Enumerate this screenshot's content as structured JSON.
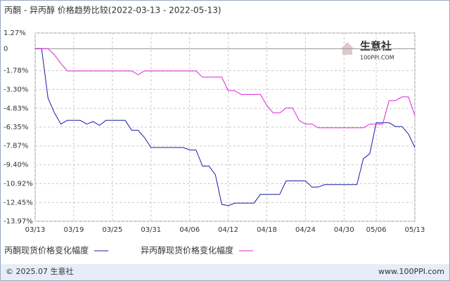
{
  "chart_data": {
    "type": "line",
    "title": "丙酮 - 异丙醇 价格趋势比较(2022-03-13 - 2022-05-13)",
    "watermark": [
      "生意社",
      "100PPI.COM"
    ],
    "footer_left": "© 2025.07 生意社",
    "footer_right": "www.100PPI.com",
    "categories": [
      "03/13",
      null,
      null,
      null,
      null,
      null,
      "03/19",
      null,
      null,
      null,
      null,
      null,
      "03/25",
      null,
      null,
      null,
      null,
      null,
      "03/31",
      null,
      null,
      null,
      null,
      null,
      "04/06",
      null,
      null,
      null,
      null,
      null,
      "04/12",
      null,
      null,
      null,
      null,
      null,
      "04/18",
      null,
      null,
      null,
      null,
      null,
      "04/24",
      null,
      null,
      null,
      null,
      null,
      "04/30",
      null,
      null,
      null,
      null,
      "05/06",
      null,
      null,
      null,
      null,
      null,
      "05/13"
    ],
    "series": [
      {
        "name": "丙酮现货价格变化幅度",
        "color": "#1c1caa",
        "values": [
          0,
          0,
          -4.0,
          -5.2,
          -6.1,
          -5.8,
          -5.8,
          -5.8,
          -6.1,
          -5.9,
          -6.2,
          -5.8,
          -5.8,
          -5.8,
          -5.8,
          -6.6,
          -6.6,
          -7.2,
          -8.0,
          -8.0,
          -8.0,
          -8.0,
          -8.0,
          -8.0,
          -8.2,
          -8.2,
          -9.5,
          -9.5,
          -10.2,
          -12.6,
          -12.7,
          -12.5,
          -12.5,
          -12.5,
          -12.5,
          -11.8,
          -11.8,
          -11.8,
          -11.8,
          -10.7,
          -10.7,
          -10.7,
          -10.7,
          -11.2,
          -11.2,
          -11.0,
          -11.0,
          -11.0,
          -11.0,
          -11.0,
          -11.0,
          -8.9,
          -8.5,
          -6.0,
          -6.0,
          -6.0,
          -6.3,
          -6.3,
          -6.9,
          -8.0
        ]
      },
      {
        "name": "异丙醇现货价格变化幅度",
        "color": "#e020d8",
        "values": [
          0,
          0,
          0,
          -0.5,
          -1.2,
          -1.8,
          -1.8,
          -1.8,
          -1.8,
          -1.8,
          -1.8,
          -1.8,
          -1.8,
          -1.8,
          -1.8,
          -1.8,
          -2.1,
          -1.8,
          -1.8,
          -1.8,
          -1.8,
          -1.8,
          -1.8,
          -1.8,
          -1.8,
          -1.8,
          -2.3,
          -2.3,
          -2.3,
          -2.3,
          -3.4,
          -3.4,
          -3.7,
          -3.7,
          -3.7,
          -3.7,
          -4.6,
          -5.2,
          -5.2,
          -4.8,
          -4.8,
          -5.8,
          -6.1,
          -6.1,
          -6.4,
          -6.4,
          -6.4,
          -6.4,
          -6.4,
          -6.4,
          -6.4,
          -6.4,
          -6.1,
          -6.1,
          -6.1,
          -4.2,
          -4.2,
          -3.9,
          -3.9,
          -5.4
        ]
      }
    ],
    "ylim": [
      -13.97,
      1.27
    ],
    "yticks": [
      {
        "value": 1.27,
        "label": "1.27%"
      },
      0,
      {
        "value": -1.78,
        "label": "-1.78%"
      },
      {
        "value": -3.3,
        "label": "-3.30%"
      },
      {
        "value": -4.83,
        "label": "-4.83%"
      },
      {
        "value": -6.35,
        "label": "-6.35%"
      },
      {
        "value": -7.87,
        "label": "-7.87%"
      },
      {
        "value": -9.4,
        "label": "-9.40%"
      },
      {
        "value": -10.92,
        "label": "-10.92%"
      },
      {
        "value": -12.45,
        "label": "-12.45%"
      },
      {
        "value": -13.97,
        "label": "-13.97%"
      }
    ],
    "grid": true
  }
}
